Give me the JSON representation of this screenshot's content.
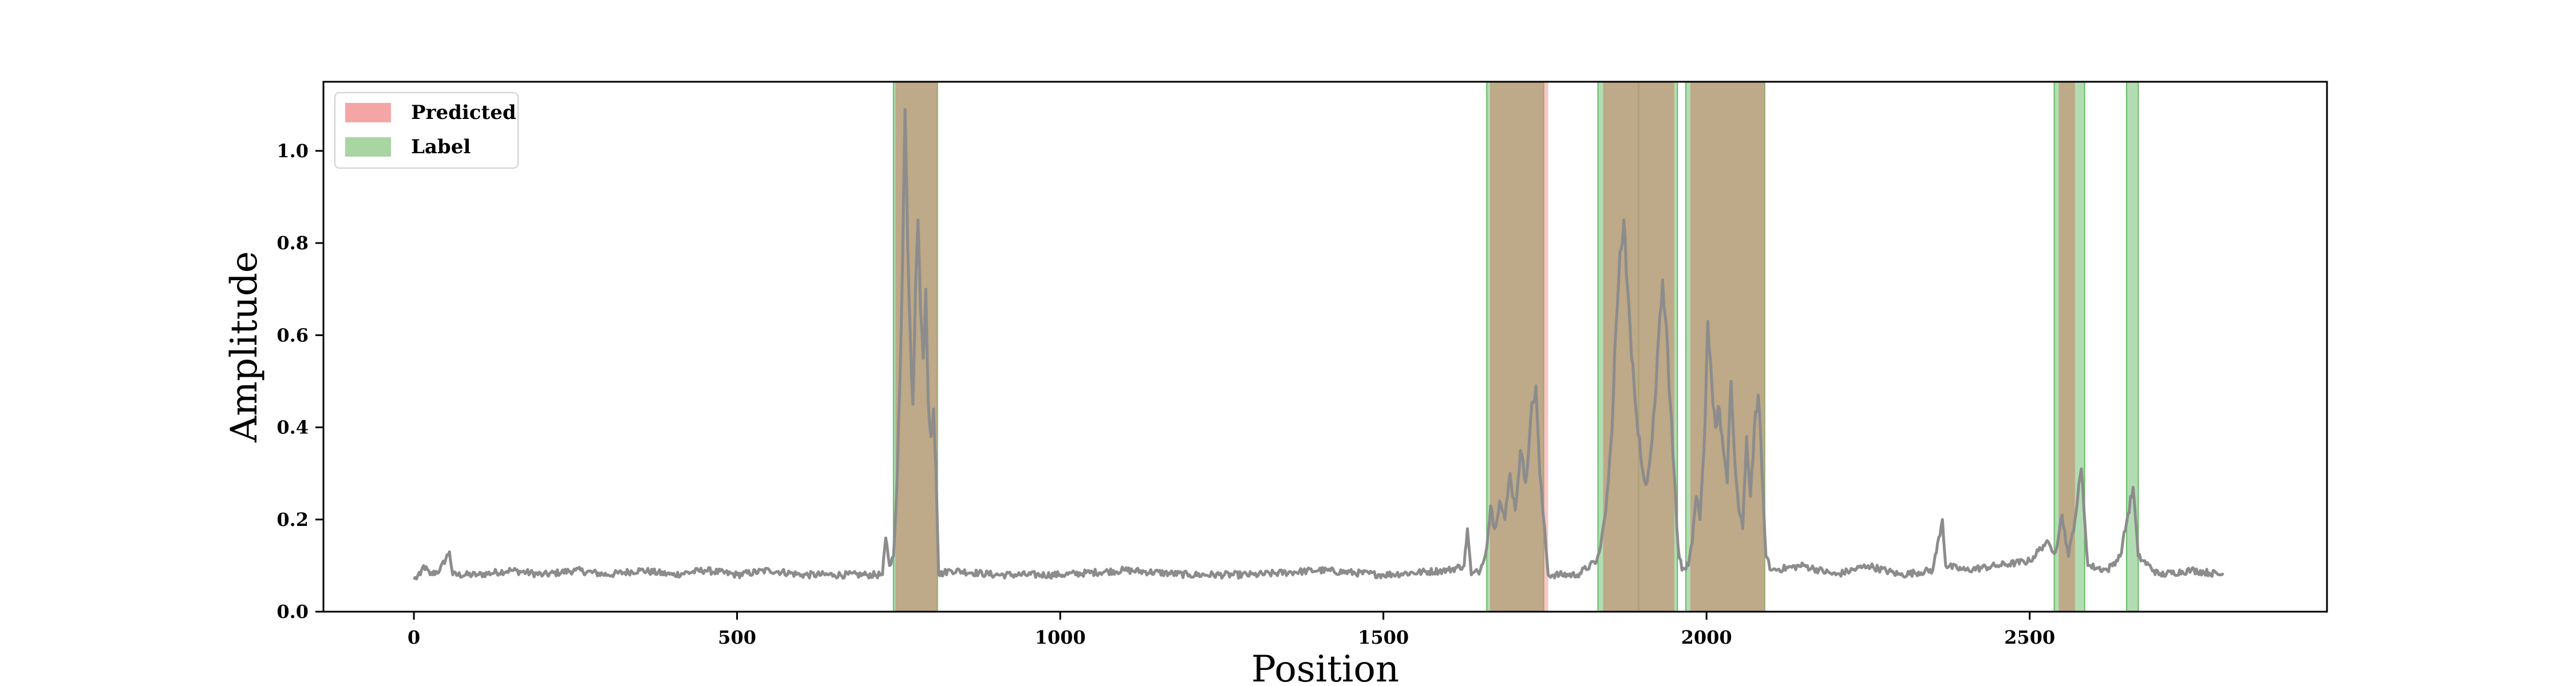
{
  "chart_data": {
    "type": "line",
    "xlabel": "Position",
    "ylabel": "Amplitude",
    "xlim": [
      -140,
      2960
    ],
    "ylim": [
      0.0,
      1.15
    ],
    "xticks": [
      0,
      500,
      1000,
      1500,
      2000,
      2500
    ],
    "yticks": [
      0.0,
      0.2,
      0.4,
      0.6,
      0.8,
      1.0
    ],
    "xtick_labels": [
      "0",
      "500",
      "1000",
      "1500",
      "2000",
      "2500"
    ],
    "ytick_labels": [
      "0.0",
      "0.2",
      "0.4",
      "0.6",
      "0.8",
      "1.0"
    ],
    "grid": false,
    "legend": {
      "placement": "top-left",
      "entries": [
        {
          "label": "Predicted",
          "color": "#f4a6a6"
        },
        {
          "label": "Label",
          "color": "#a8d5a2"
        }
      ]
    },
    "colors": {
      "signal": "#8c8c8c",
      "predicted": "#f08080",
      "label": "#66bb66",
      "overlap": "#b0a078"
    },
    "predicted_regions": [
      [
        745,
        810
      ],
      [
        1665,
        1755
      ],
      [
        1840,
        1950
      ],
      [
        1975,
        2090
      ],
      [
        2545,
        2570
      ]
    ],
    "label_regions": [
      [
        742,
        810
      ],
      [
        1660,
        1748
      ],
      [
        1832,
        1895
      ],
      [
        1895,
        1955
      ],
      [
        1968,
        2090
      ],
      [
        2538,
        2585
      ],
      [
        2650,
        2668
      ]
    ],
    "signal_points": [
      [
        0,
        0.07
      ],
      [
        10,
        0.08
      ],
      [
        15,
        0.1
      ],
      [
        25,
        0.08
      ],
      [
        40,
        0.09
      ],
      [
        55,
        0.13
      ],
      [
        60,
        0.08
      ],
      [
        100,
        0.08
      ],
      [
        150,
        0.09
      ],
      [
        200,
        0.08
      ],
      [
        250,
        0.09
      ],
      [
        300,
        0.08
      ],
      [
        350,
        0.09
      ],
      [
        400,
        0.08
      ],
      [
        450,
        0.09
      ],
      [
        500,
        0.08
      ],
      [
        550,
        0.09
      ],
      [
        600,
        0.08
      ],
      [
        650,
        0.08
      ],
      [
        700,
        0.08
      ],
      [
        725,
        0.08
      ],
      [
        730,
        0.16
      ],
      [
        736,
        0.1
      ],
      [
        742,
        0.12
      ],
      [
        748,
        0.3
      ],
      [
        752,
        0.5
      ],
      [
        756,
        0.75
      ],
      [
        760,
        1.09
      ],
      [
        764,
        0.8
      ],
      [
        768,
        0.6
      ],
      [
        772,
        0.45
      ],
      [
        776,
        0.7
      ],
      [
        780,
        0.85
      ],
      [
        784,
        0.65
      ],
      [
        788,
        0.55
      ],
      [
        792,
        0.7
      ],
      [
        796,
        0.45
      ],
      [
        800,
        0.38
      ],
      [
        804,
        0.44
      ],
      [
        808,
        0.3
      ],
      [
        812,
        0.08
      ],
      [
        830,
        0.09
      ],
      [
        900,
        0.08
      ],
      [
        1000,
        0.08
      ],
      [
        1100,
        0.09
      ],
      [
        1200,
        0.08
      ],
      [
        1300,
        0.08
      ],
      [
        1400,
        0.09
      ],
      [
        1500,
        0.08
      ],
      [
        1600,
        0.09
      ],
      [
        1625,
        0.1
      ],
      [
        1630,
        0.18
      ],
      [
        1636,
        0.08
      ],
      [
        1650,
        0.09
      ],
      [
        1660,
        0.14
      ],
      [
        1666,
        0.23
      ],
      [
        1672,
        0.18
      ],
      [
        1680,
        0.24
      ],
      [
        1688,
        0.2
      ],
      [
        1696,
        0.3
      ],
      [
        1704,
        0.22
      ],
      [
        1712,
        0.35
      ],
      [
        1720,
        0.28
      ],
      [
        1728,
        0.42
      ],
      [
        1736,
        0.49
      ],
      [
        1742,
        0.3
      ],
      [
        1748,
        0.2
      ],
      [
        1755,
        0.08
      ],
      [
        1800,
        0.08
      ],
      [
        1830,
        0.11
      ],
      [
        1836,
        0.14
      ],
      [
        1842,
        0.2
      ],
      [
        1848,
        0.28
      ],
      [
        1854,
        0.4
      ],
      [
        1860,
        0.62
      ],
      [
        1866,
        0.78
      ],
      [
        1872,
        0.85
      ],
      [
        1878,
        0.7
      ],
      [
        1884,
        0.55
      ],
      [
        1890,
        0.45
      ],
      [
        1896,
        0.38
      ],
      [
        1902,
        0.3
      ],
      [
        1908,
        0.28
      ],
      [
        1914,
        0.35
      ],
      [
        1920,
        0.45
      ],
      [
        1926,
        0.6
      ],
      [
        1932,
        0.72
      ],
      [
        1938,
        0.62
      ],
      [
        1944,
        0.45
      ],
      [
        1950,
        0.3
      ],
      [
        1956,
        0.14
      ],
      [
        1962,
        0.09
      ],
      [
        1972,
        0.1
      ],
      [
        1978,
        0.15
      ],
      [
        1984,
        0.25
      ],
      [
        1990,
        0.2
      ],
      [
        1996,
        0.35
      ],
      [
        2002,
        0.63
      ],
      [
        2008,
        0.5
      ],
      [
        2014,
        0.4
      ],
      [
        2020,
        0.44
      ],
      [
        2026,
        0.35
      ],
      [
        2032,
        0.28
      ],
      [
        2038,
        0.5
      ],
      [
        2044,
        0.32
      ],
      [
        2050,
        0.22
      ],
      [
        2056,
        0.18
      ],
      [
        2062,
        0.38
      ],
      [
        2068,
        0.25
      ],
      [
        2074,
        0.4
      ],
      [
        2080,
        0.47
      ],
      [
        2086,
        0.3
      ],
      [
        2092,
        0.12
      ],
      [
        2100,
        0.09
      ],
      [
        2150,
        0.1
      ],
      [
        2200,
        0.08
      ],
      [
        2250,
        0.1
      ],
      [
        2300,
        0.08
      ],
      [
        2350,
        0.09
      ],
      [
        2365,
        0.2
      ],
      [
        2370,
        0.1
      ],
      [
        2400,
        0.09
      ],
      [
        2450,
        0.1
      ],
      [
        2500,
        0.11
      ],
      [
        2525,
        0.15
      ],
      [
        2540,
        0.13
      ],
      [
        2550,
        0.21
      ],
      [
        2560,
        0.12
      ],
      [
        2570,
        0.2
      ],
      [
        2580,
        0.31
      ],
      [
        2590,
        0.1
      ],
      [
        2620,
        0.09
      ],
      [
        2640,
        0.12
      ],
      [
        2660,
        0.27
      ],
      [
        2668,
        0.12
      ],
      [
        2700,
        0.08
      ],
      [
        2750,
        0.09
      ],
      [
        2800,
        0.08
      ]
    ]
  }
}
